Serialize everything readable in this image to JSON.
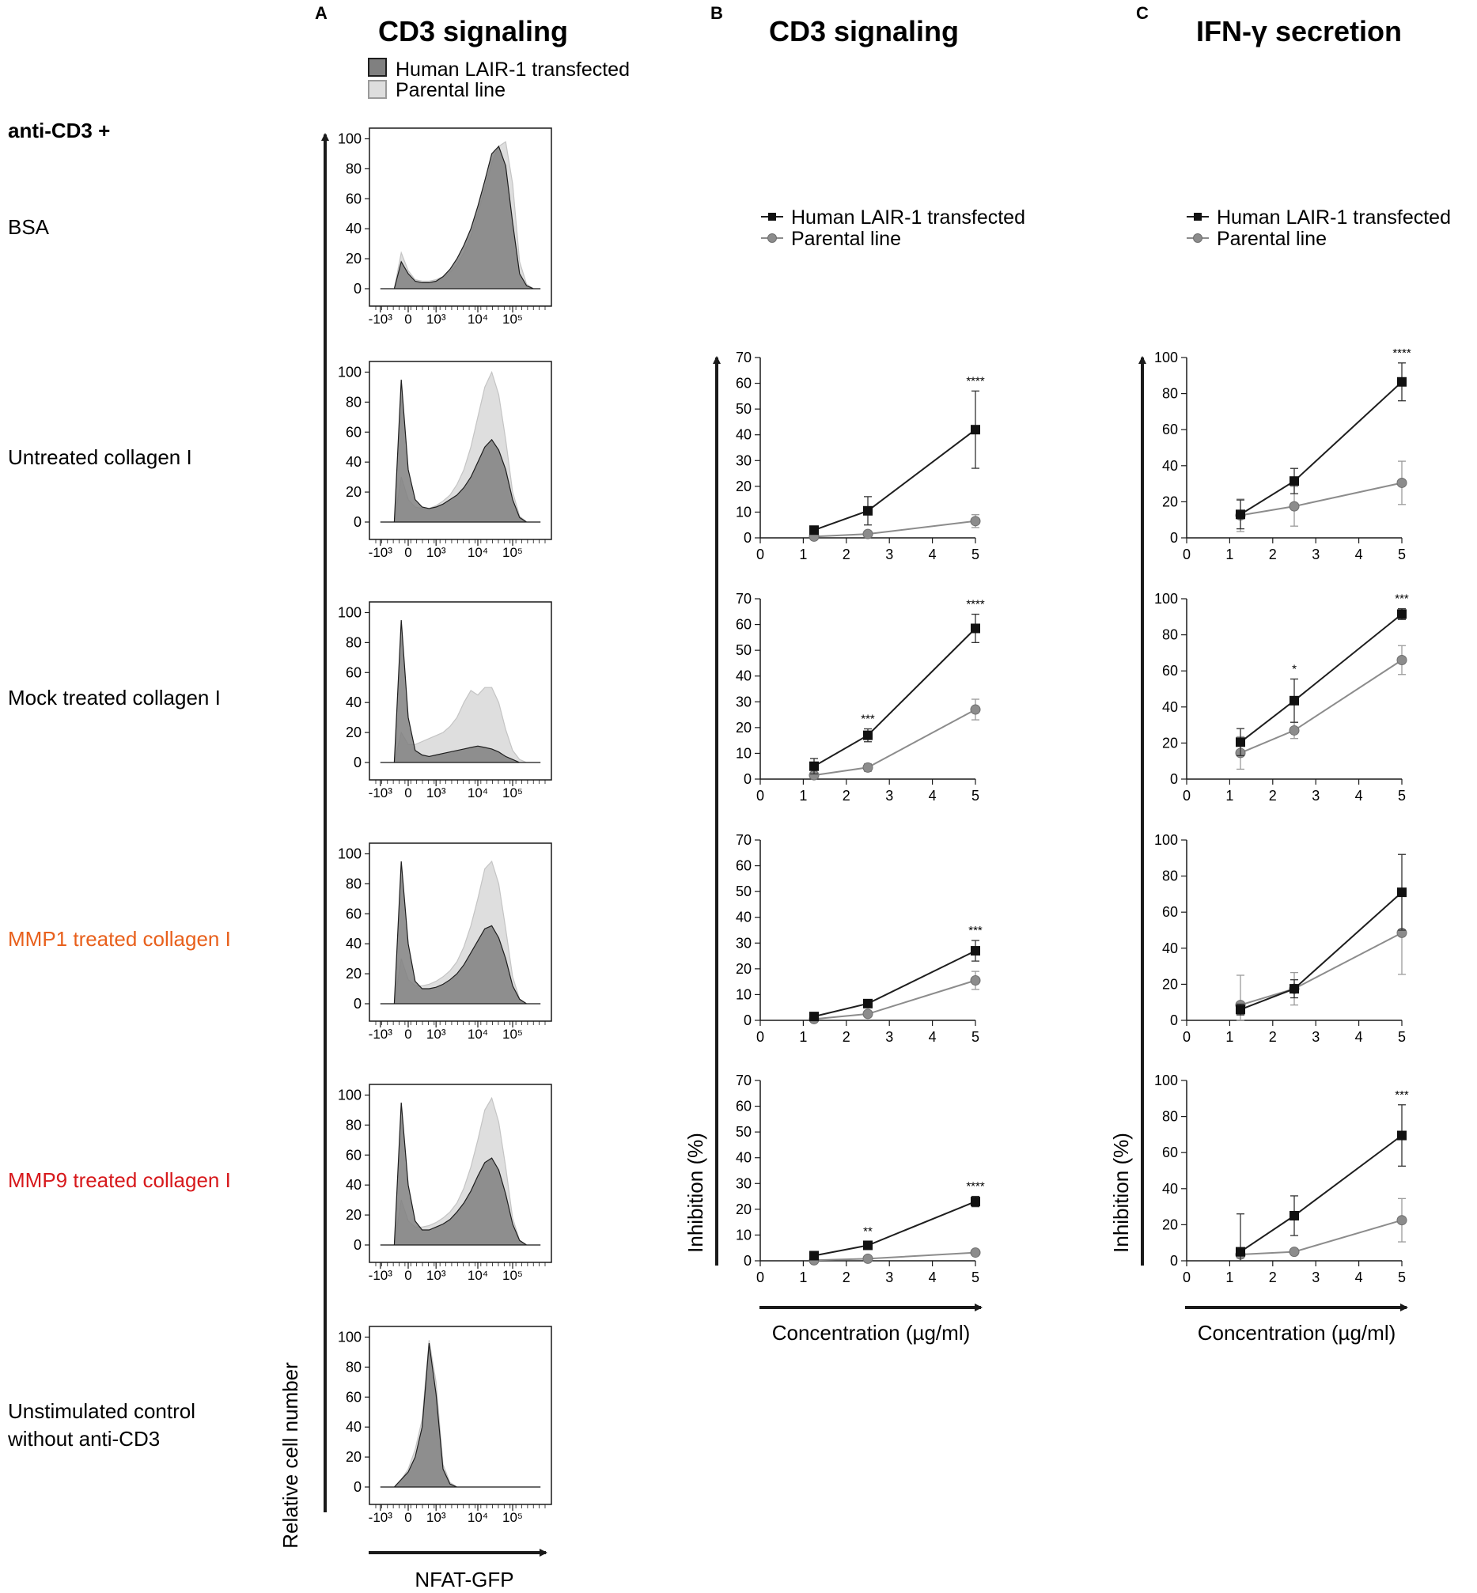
{
  "colors": {
    "transfected_fill": "#808080",
    "transfected_line": "#1e1e1e",
    "parental_fill": "#dedede",
    "parental_line": "#c4c4c4",
    "marker_gray": "#8c8c8c",
    "label_orange": "#e8601c",
    "label_red": "#d7191c",
    "text": "#1a1a1a"
  },
  "panel_letters": {
    "a": "A",
    "b": "B",
    "c": "C"
  },
  "titles": {
    "a": "CD3 signaling",
    "b": "CD3 signaling",
    "c": "IFN-γ secretion"
  },
  "legend": {
    "transfected": "Human LAIR-1 transfected",
    "parental": "Parental line"
  },
  "row_header": "anti-CD3 +",
  "row_labels": [
    {
      "text": "BSA"
    },
    {
      "text": "Untreated collagen I"
    },
    {
      "text": "Mock treated collagen I"
    },
    {
      "text": "MMP1 treated collagen I"
    },
    {
      "text": "MMP9 treated collagen I"
    },
    {
      "line1": "Unstimulated control",
      "line2": "without anti-CD3"
    }
  ],
  "axis_labels": {
    "relative_cell_number": "Relative cell number",
    "nfat_gfp": "NFAT-GFP",
    "inhibition": "Inhibition (%)",
    "concentration": "Concentration (µg/ml)"
  },
  "chart_data": [
    {
      "type": "area",
      "panel": "A",
      "title": "CD3 signaling",
      "xlabel": "NFAT-GFP",
      "ylabel": "Relative cell number",
      "x_ticks": [
        "-10³",
        "0",
        "10³",
        "10⁴",
        "10⁵"
      ],
      "y_ticks": [
        0,
        20,
        40,
        60,
        80,
        100
      ],
      "ylim": [
        0,
        105
      ],
      "x_grid": [
        0.2,
        0.4,
        0.6,
        0.8,
        1.0,
        1.2,
        1.4,
        1.6,
        1.8,
        2.0,
        2.2,
        2.4,
        2.6,
        2.8,
        3.0,
        3.2,
        3.4,
        3.6,
        3.8,
        4.0,
        4.2,
        4.4,
        4.6,
        4.8
      ],
      "rows": [
        {
          "label": "BSA",
          "transfected": [
            0,
            0,
            0,
            18,
            10,
            5,
            4,
            4,
            5,
            8,
            13,
            20,
            29,
            40,
            55,
            72,
            90,
            95,
            82,
            44,
            10,
            2,
            0,
            0
          ],
          "parental": [
            0,
            0,
            0,
            24,
            12,
            6,
            5,
            5,
            6,
            8,
            11,
            16,
            24,
            35,
            50,
            66,
            84,
            95,
            98,
            70,
            18,
            3,
            0,
            0
          ]
        },
        {
          "label": "Untreated collagen I",
          "transfected": [
            0,
            0,
            0,
            95,
            35,
            15,
            10,
            9,
            10,
            12,
            15,
            18,
            23,
            30,
            40,
            50,
            55,
            48,
            35,
            15,
            3,
            0,
            0,
            0
          ],
          "parental": [
            0,
            0,
            0,
            30,
            15,
            10,
            9,
            9,
            11,
            14,
            18,
            25,
            35,
            50,
            70,
            90,
            100,
            85,
            55,
            20,
            4,
            0,
            0,
            0
          ]
        },
        {
          "label": "Mock treated collagen I",
          "transfected": [
            0,
            0,
            0,
            95,
            30,
            8,
            5,
            4,
            5,
            6,
            7,
            8,
            9,
            10,
            11,
            10,
            9,
            7,
            4,
            2,
            0,
            0,
            0,
            0
          ],
          "parental": [
            0,
            0,
            0,
            20,
            12,
            12,
            14,
            16,
            18,
            20,
            24,
            30,
            40,
            48,
            45,
            50,
            50,
            40,
            22,
            8,
            2,
            0,
            0,
            0
          ]
        },
        {
          "label": "MMP1 treated collagen I",
          "transfected": [
            0,
            0,
            0,
            95,
            40,
            15,
            10,
            10,
            11,
            13,
            16,
            20,
            26,
            34,
            42,
            50,
            52,
            44,
            30,
            12,
            3,
            0,
            0,
            0
          ],
          "parental": [
            0,
            0,
            0,
            30,
            16,
            12,
            12,
            13,
            15,
            18,
            22,
            28,
            38,
            52,
            70,
            90,
            95,
            80,
            50,
            18,
            3,
            0,
            0,
            0
          ]
        },
        {
          "label": "MMP9 treated collagen I",
          "transfected": [
            0,
            0,
            0,
            95,
            40,
            16,
            10,
            10,
            12,
            14,
            17,
            22,
            28,
            36,
            46,
            55,
            58,
            50,
            34,
            14,
            3,
            0,
            0,
            0
          ],
          "parental": [
            0,
            0,
            0,
            30,
            16,
            12,
            12,
            13,
            15,
            18,
            22,
            28,
            38,
            52,
            70,
            90,
            98,
            82,
            52,
            18,
            3,
            0,
            0,
            0
          ]
        },
        {
          "label": "Unstimulated control without anti-CD3",
          "transfected": [
            0,
            0,
            0,
            5,
            10,
            20,
            40,
            96,
            62,
            12,
            2,
            0,
            0,
            0,
            0,
            0,
            0,
            0,
            0,
            0,
            0,
            0,
            0,
            0
          ],
          "parental": [
            0,
            0,
            0,
            5,
            12,
            25,
            45,
            98,
            70,
            15,
            3,
            0,
            0,
            0,
            0,
            0,
            0,
            0,
            0,
            0,
            0,
            0,
            0,
            0
          ]
        }
      ]
    },
    {
      "type": "line",
      "panel": "B",
      "title": "CD3 signaling",
      "xlabel": "Concentration (µg/ml)",
      "ylabel": "Inhibition (%)",
      "xlim": [
        0,
        5
      ],
      "ylim": [
        0,
        70
      ],
      "x_ticks": [
        0,
        1,
        2,
        3,
        4,
        5
      ],
      "y_ticks": [
        0,
        10,
        20,
        30,
        40,
        50,
        60,
        70
      ],
      "x": [
        1.25,
        2.5,
        5
      ],
      "rows": [
        {
          "label": "Untreated collagen I",
          "series": [
            {
              "name": "Human LAIR-1 transfected",
              "values": [
                3,
                10.5,
                42
              ],
              "errors": [
                1.2,
                5.5,
                15
              ]
            },
            {
              "name": "Parental line",
              "values": [
                0.5,
                1.5,
                6.5
              ],
              "errors": [
                0.5,
                0.8,
                2.5
              ]
            }
          ],
          "significance": [
            "",
            "",
            "****"
          ]
        },
        {
          "label": "Mock treated collagen I",
          "series": [
            {
              "name": "Human LAIR-1 transfected",
              "values": [
                5,
                17,
                58.5
              ],
              "errors": [
                3,
                2.5,
                5.5
              ]
            },
            {
              "name": "Parental line",
              "values": [
                1.5,
                4.5,
                27
              ],
              "errors": [
                0.8,
                1.5,
                4
              ]
            }
          ],
          "significance": [
            "",
            "***",
            "****"
          ]
        },
        {
          "label": "MMP1 treated collagen I",
          "series": [
            {
              "name": "Human LAIR-1 transfected",
              "values": [
                1.5,
                6.5,
                27
              ],
              "errors": [
                0.8,
                1.2,
                4
              ]
            },
            {
              "name": "Parental line",
              "values": [
                0.5,
                2.5,
                15.5
              ],
              "errors": [
                0.4,
                1,
                3.5
              ]
            }
          ],
          "significance": [
            "",
            "",
            "***"
          ]
        },
        {
          "label": "MMP9 treated collagen I",
          "series": [
            {
              "name": "Human LAIR-1 transfected",
              "values": [
                2,
                6,
                23
              ],
              "errors": [
                0.8,
                1.5,
                2
              ]
            },
            {
              "name": "Parental line",
              "values": [
                0.2,
                0.8,
                3.2
              ],
              "errors": [
                0.3,
                0.5,
                0.8
              ]
            }
          ],
          "significance": [
            "",
            "**",
            "****"
          ]
        }
      ]
    },
    {
      "type": "line",
      "panel": "C",
      "title": "IFN-γ secretion",
      "xlabel": "Concentration (µg/ml)",
      "ylabel": "Inhibition (%)",
      "xlim": [
        0,
        5
      ],
      "ylim": [
        0,
        100
      ],
      "x_ticks": [
        0,
        1,
        2,
        3,
        4,
        5
      ],
      "y_ticks": [
        0,
        20,
        40,
        60,
        80,
        100
      ],
      "x": [
        1.25,
        2.5,
        5
      ],
      "rows": [
        {
          "label": "Untreated collagen I",
          "series": [
            {
              "name": "Human LAIR-1 transfected",
              "values": [
                13,
                31.5,
                86.5
              ],
              "errors": [
                8,
                7,
                10.5
              ]
            },
            {
              "name": "Parental line",
              "values": [
                12.5,
                17.5,
                30.5
              ],
              "errors": [
                9,
                11,
                12
              ]
            }
          ],
          "significance": [
            "",
            "",
            "****"
          ]
        },
        {
          "label": "Mock treated collagen I",
          "series": [
            {
              "name": "Human LAIR-1 transfected",
              "values": [
                20.5,
                43.5,
                91.5
              ],
              "errors": [
                7.5,
                12,
                3
              ]
            },
            {
              "name": "Parental line",
              "values": [
                14.5,
                27,
                66
              ],
              "errors": [
                9,
                4.5,
                8
              ]
            }
          ],
          "significance": [
            "",
            "*",
            "***"
          ]
        },
        {
          "label": "MMP1 treated collagen I",
          "series": [
            {
              "name": "Human LAIR-1 transfected",
              "values": [
                6,
                17.5,
                71
              ],
              "errors": [
                3,
                5,
                21
              ]
            },
            {
              "name": "Parental line",
              "values": [
                8.5,
                17.5,
                48.5
              ],
              "errors": [
                16.5,
                9,
                23
              ]
            }
          ],
          "significance": [
            "",
            "",
            ""
          ]
        },
        {
          "label": "MMP9 treated collagen I",
          "series": [
            {
              "name": "Human LAIR-1 transfected",
              "values": [
                5,
                25,
                69.5
              ],
              "errors": [
                21,
                11,
                17
              ]
            },
            {
              "name": "Parental line",
              "values": [
                3.5,
                5,
                22.5
              ],
              "errors": [
                2,
                1.5,
                12
              ]
            }
          ],
          "significance": [
            "",
            "",
            "***"
          ]
        }
      ]
    }
  ]
}
